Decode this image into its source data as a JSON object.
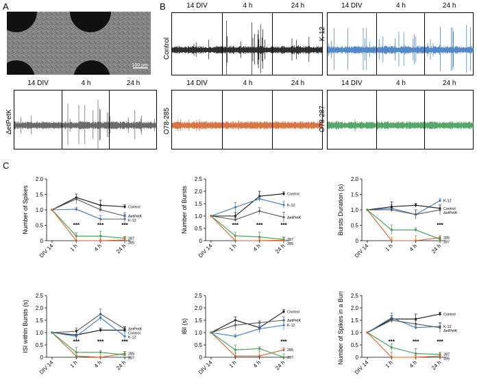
{
  "panels": {
    "a": "A",
    "b": "B",
    "c": "C"
  },
  "micrograph": {
    "scale_bar": "100 µm"
  },
  "traces": [
    {
      "condition": "Control",
      "color": "#111111",
      "segments": [
        "14 DIV",
        "4 h",
        "24 h"
      ],
      "activity": [
        0.35,
        1.0,
        0.45
      ]
    },
    {
      "condition": "K-12",
      "color": "#3b78c2",
      "segments": [
        "14 DIV",
        "4 h",
        "24 h"
      ],
      "activity": [
        0.9,
        0.6,
        0.85
      ]
    },
    {
      "condition": "ΔetPetK",
      "color": "#555555",
      "segments": [
        "14 DIV",
        "4 h",
        "24 h"
      ],
      "activity": [
        0.3,
        0.95,
        0.7
      ]
    },
    {
      "condition": "O78-285",
      "color": "#d2622b",
      "segments": [
        "14 DIV",
        "4 h",
        "24 h"
      ],
      "activity": [
        0.25,
        0.1,
        0.1
      ]
    },
    {
      "condition": "O78-287",
      "color": "#3f9a55",
      "segments": [
        "14 DIV",
        "4 h",
        "24 h"
      ],
      "activity": [
        0.2,
        0.15,
        0.1
      ]
    }
  ],
  "chart_data": [
    {
      "type": "line",
      "ylabel": "Number of Spikes",
      "ylim": [
        0,
        2
      ],
      "yticks": [
        "0",
        "0.5",
        "1.0",
        "1.5",
        "2.0"
      ],
      "categories": [
        "DIV 14",
        "1 h",
        "4 h",
        "24 h"
      ],
      "series": [
        {
          "name": "Control",
          "color": "#111111",
          "values": [
            1.0,
            1.4,
            1.15,
            1.1
          ]
        },
        {
          "name": "ΔetPetK",
          "color": "#555555",
          "values": [
            1.0,
            1.35,
            1.0,
            0.8
          ]
        },
        {
          "name": "K-12",
          "color": "#3b78c2",
          "values": [
            1.0,
            1.02,
            0.7,
            0.7
          ]
        },
        {
          "name": "287",
          "color": "#3f9a55",
          "values": [
            1.0,
            0.15,
            0.15,
            0.08
          ]
        },
        {
          "name": "285",
          "color": "#d2622b",
          "values": [
            1.0,
            0.0,
            0.0,
            0.02
          ]
        }
      ],
      "stars": [
        "***",
        "***",
        "***"
      ]
    },
    {
      "type": "line",
      "ylabel": "Number of Bursts",
      "ylim": [
        0,
        2.5
      ],
      "yticks": [
        "0",
        "0.5",
        "1.0",
        "1.5",
        "2.0",
        "2.5"
      ],
      "categories": [
        "DIV 14",
        "1 h",
        "4 h",
        "24 h"
      ],
      "series": [
        {
          "name": "Control",
          "color": "#111111",
          "values": [
            1.0,
            1.0,
            1.8,
            1.9
          ]
        },
        {
          "name": "K-12",
          "color": "#3b78c2",
          "values": [
            1.0,
            1.35,
            1.7,
            1.45
          ]
        },
        {
          "name": "ΔetPetK",
          "color": "#555555",
          "values": [
            1.0,
            0.85,
            1.2,
            0.95
          ]
        },
        {
          "name": "287",
          "color": "#3f9a55",
          "values": [
            1.0,
            0.2,
            0.15,
            0.05
          ]
        },
        {
          "name": "285",
          "color": "#d2622b",
          "values": [
            1.0,
            0.0,
            0.0,
            0.02
          ]
        }
      ],
      "stars": [
        "***",
        "***",
        "***"
      ]
    },
    {
      "type": "line",
      "ylabel": "Bursts Duration (s)",
      "ylim": [
        0,
        2
      ],
      "yticks": [
        "0",
        "0.5",
        "1.0",
        "1.5",
        "2.0"
      ],
      "categories": [
        "DIV 14",
        "1 h",
        "4 h",
        "24 h"
      ],
      "series": [
        {
          "name": "K-12",
          "color": "#3b78c2",
          "values": [
            1.0,
            1.05,
            0.85,
            1.3
          ]
        },
        {
          "name": "Control",
          "color": "#111111",
          "values": [
            1.0,
            1.1,
            1.15,
            1.05
          ]
        },
        {
          "name": "ΔetPetK",
          "color": "#555555",
          "values": [
            1.0,
            1.0,
            0.85,
            1.0
          ]
        },
        {
          "name": "285",
          "color": "#d2622b",
          "values": [
            1.0,
            0.0,
            0.0,
            0.1
          ]
        },
        {
          "name": "287",
          "color": "#3f9a55",
          "values": [
            1.0,
            0.35,
            0.35,
            0.05
          ]
        }
      ],
      "stars": [
        "",
        "",
        "***"
      ]
    },
    {
      "type": "line",
      "ylabel": "ISI within Bursts (s)",
      "ylim": [
        0,
        2.5
      ],
      "yticks": [
        "0",
        "0.5",
        "1.0",
        "1.5",
        "2.0",
        "2.5"
      ],
      "categories": [
        "DIV 14",
        "1 h",
        "4 h",
        "24 h"
      ],
      "series": [
        {
          "name": "ΔetPetK",
          "color": "#555555",
          "values": [
            1.0,
            1.05,
            1.75,
            1.15
          ]
        },
        {
          "name": "Control",
          "color": "#111111",
          "values": [
            1.0,
            0.9,
            1.1,
            1.1
          ]
        },
        {
          "name": "K-12",
          "color": "#3b78c2",
          "values": [
            1.0,
            0.85,
            1.6,
            0.85
          ]
        },
        {
          "name": "285",
          "color": "#d2622b",
          "values": [
            1.0,
            0.05,
            0.0,
            0.15
          ]
        },
        {
          "name": "287",
          "color": "#3f9a55",
          "values": [
            1.0,
            0.2,
            0.2,
            0.1
          ]
        }
      ],
      "stars": [
        "***",
        "***",
        "***"
      ]
    },
    {
      "type": "line",
      "ylabel": "IBI (s)",
      "ylim": [
        0,
        2.5
      ],
      "yticks": [
        "0",
        "0.5",
        "1.0",
        "1.5",
        "2.0",
        "2.5"
      ],
      "categories": [
        "DIV 14",
        "1 h",
        "4 h",
        "24 h"
      ],
      "series": [
        {
          "name": "Control",
          "color": "#111111",
          "values": [
            1.0,
            1.5,
            1.2,
            1.85
          ]
        },
        {
          "name": "ΔetPetK",
          "color": "#555555",
          "values": [
            1.0,
            1.3,
            1.4,
            1.5
          ]
        },
        {
          "name": "K-12",
          "color": "#3b78c2",
          "values": [
            1.0,
            0.85,
            1.15,
            1.3
          ]
        },
        {
          "name": "285",
          "color": "#d2622b",
          "values": [
            1.0,
            0.05,
            0.05,
            0.3
          ]
        },
        {
          "name": "287",
          "color": "#3f9a55",
          "values": [
            1.0,
            0.3,
            0.35,
            0.0
          ]
        }
      ],
      "stars": [
        "",
        "",
        "***"
      ]
    },
    {
      "type": "line",
      "ylabel": "Number of Spikes in a Burst",
      "ylim": [
        0,
        2.5
      ],
      "yticks": [
        "0",
        "0.5",
        "1.0",
        "1.5",
        "2.0",
        "2.5"
      ],
      "categories": [
        "DIV 14",
        "1 h",
        "4 h",
        "24 h"
      ],
      "series": [
        {
          "name": "Control",
          "color": "#111111",
          "values": [
            1.0,
            1.55,
            1.55,
            1.75
          ]
        },
        {
          "name": "K-12",
          "color": "#3b78c2",
          "values": [
            1.0,
            1.6,
            1.2,
            1.25
          ]
        },
        {
          "name": "ΔetPetK",
          "color": "#555555",
          "values": [
            1.0,
            1.5,
            1.35,
            1.2
          ]
        },
        {
          "name": "287",
          "color": "#3f9a55",
          "values": [
            1.0,
            0.4,
            0.15,
            0.12
          ]
        },
        {
          "name": "285",
          "color": "#d2622b",
          "values": [
            1.0,
            0.0,
            0.0,
            0.05
          ]
        }
      ],
      "stars": [
        "***",
        "***",
        "***"
      ]
    }
  ]
}
